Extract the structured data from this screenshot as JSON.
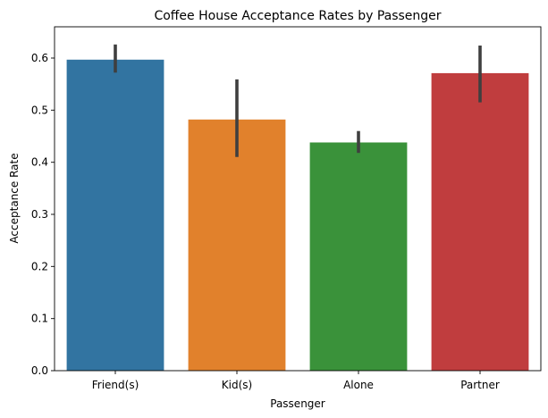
{
  "chart_data": {
    "type": "bar",
    "title": "Coffee House Acceptance Rates by Passenger",
    "xlabel": "Passenger",
    "ylabel": "Acceptance Rate",
    "categories": [
      "Friend(s)",
      "Kid(s)",
      "Alone",
      "Partner"
    ],
    "values": [
      0.597,
      0.482,
      0.438,
      0.571
    ],
    "error_low": [
      0.572,
      0.41,
      0.418,
      0.515
    ],
    "error_high": [
      0.626,
      0.559,
      0.46,
      0.624
    ],
    "colors": [
      "#3274a1",
      "#e1812c",
      "#3a923a",
      "#c03d3e"
    ],
    "error_color": "#3f3f3f",
    "ylim": [
      0,
      0.66
    ],
    "yticks": [
      0.0,
      0.1,
      0.2,
      0.3,
      0.4,
      0.5,
      0.6
    ],
    "ytick_labels": [
      "0.0",
      "0.1",
      "0.2",
      "0.3",
      "0.4",
      "0.5",
      "0.6"
    ],
    "grid": false,
    "legend": "none"
  }
}
